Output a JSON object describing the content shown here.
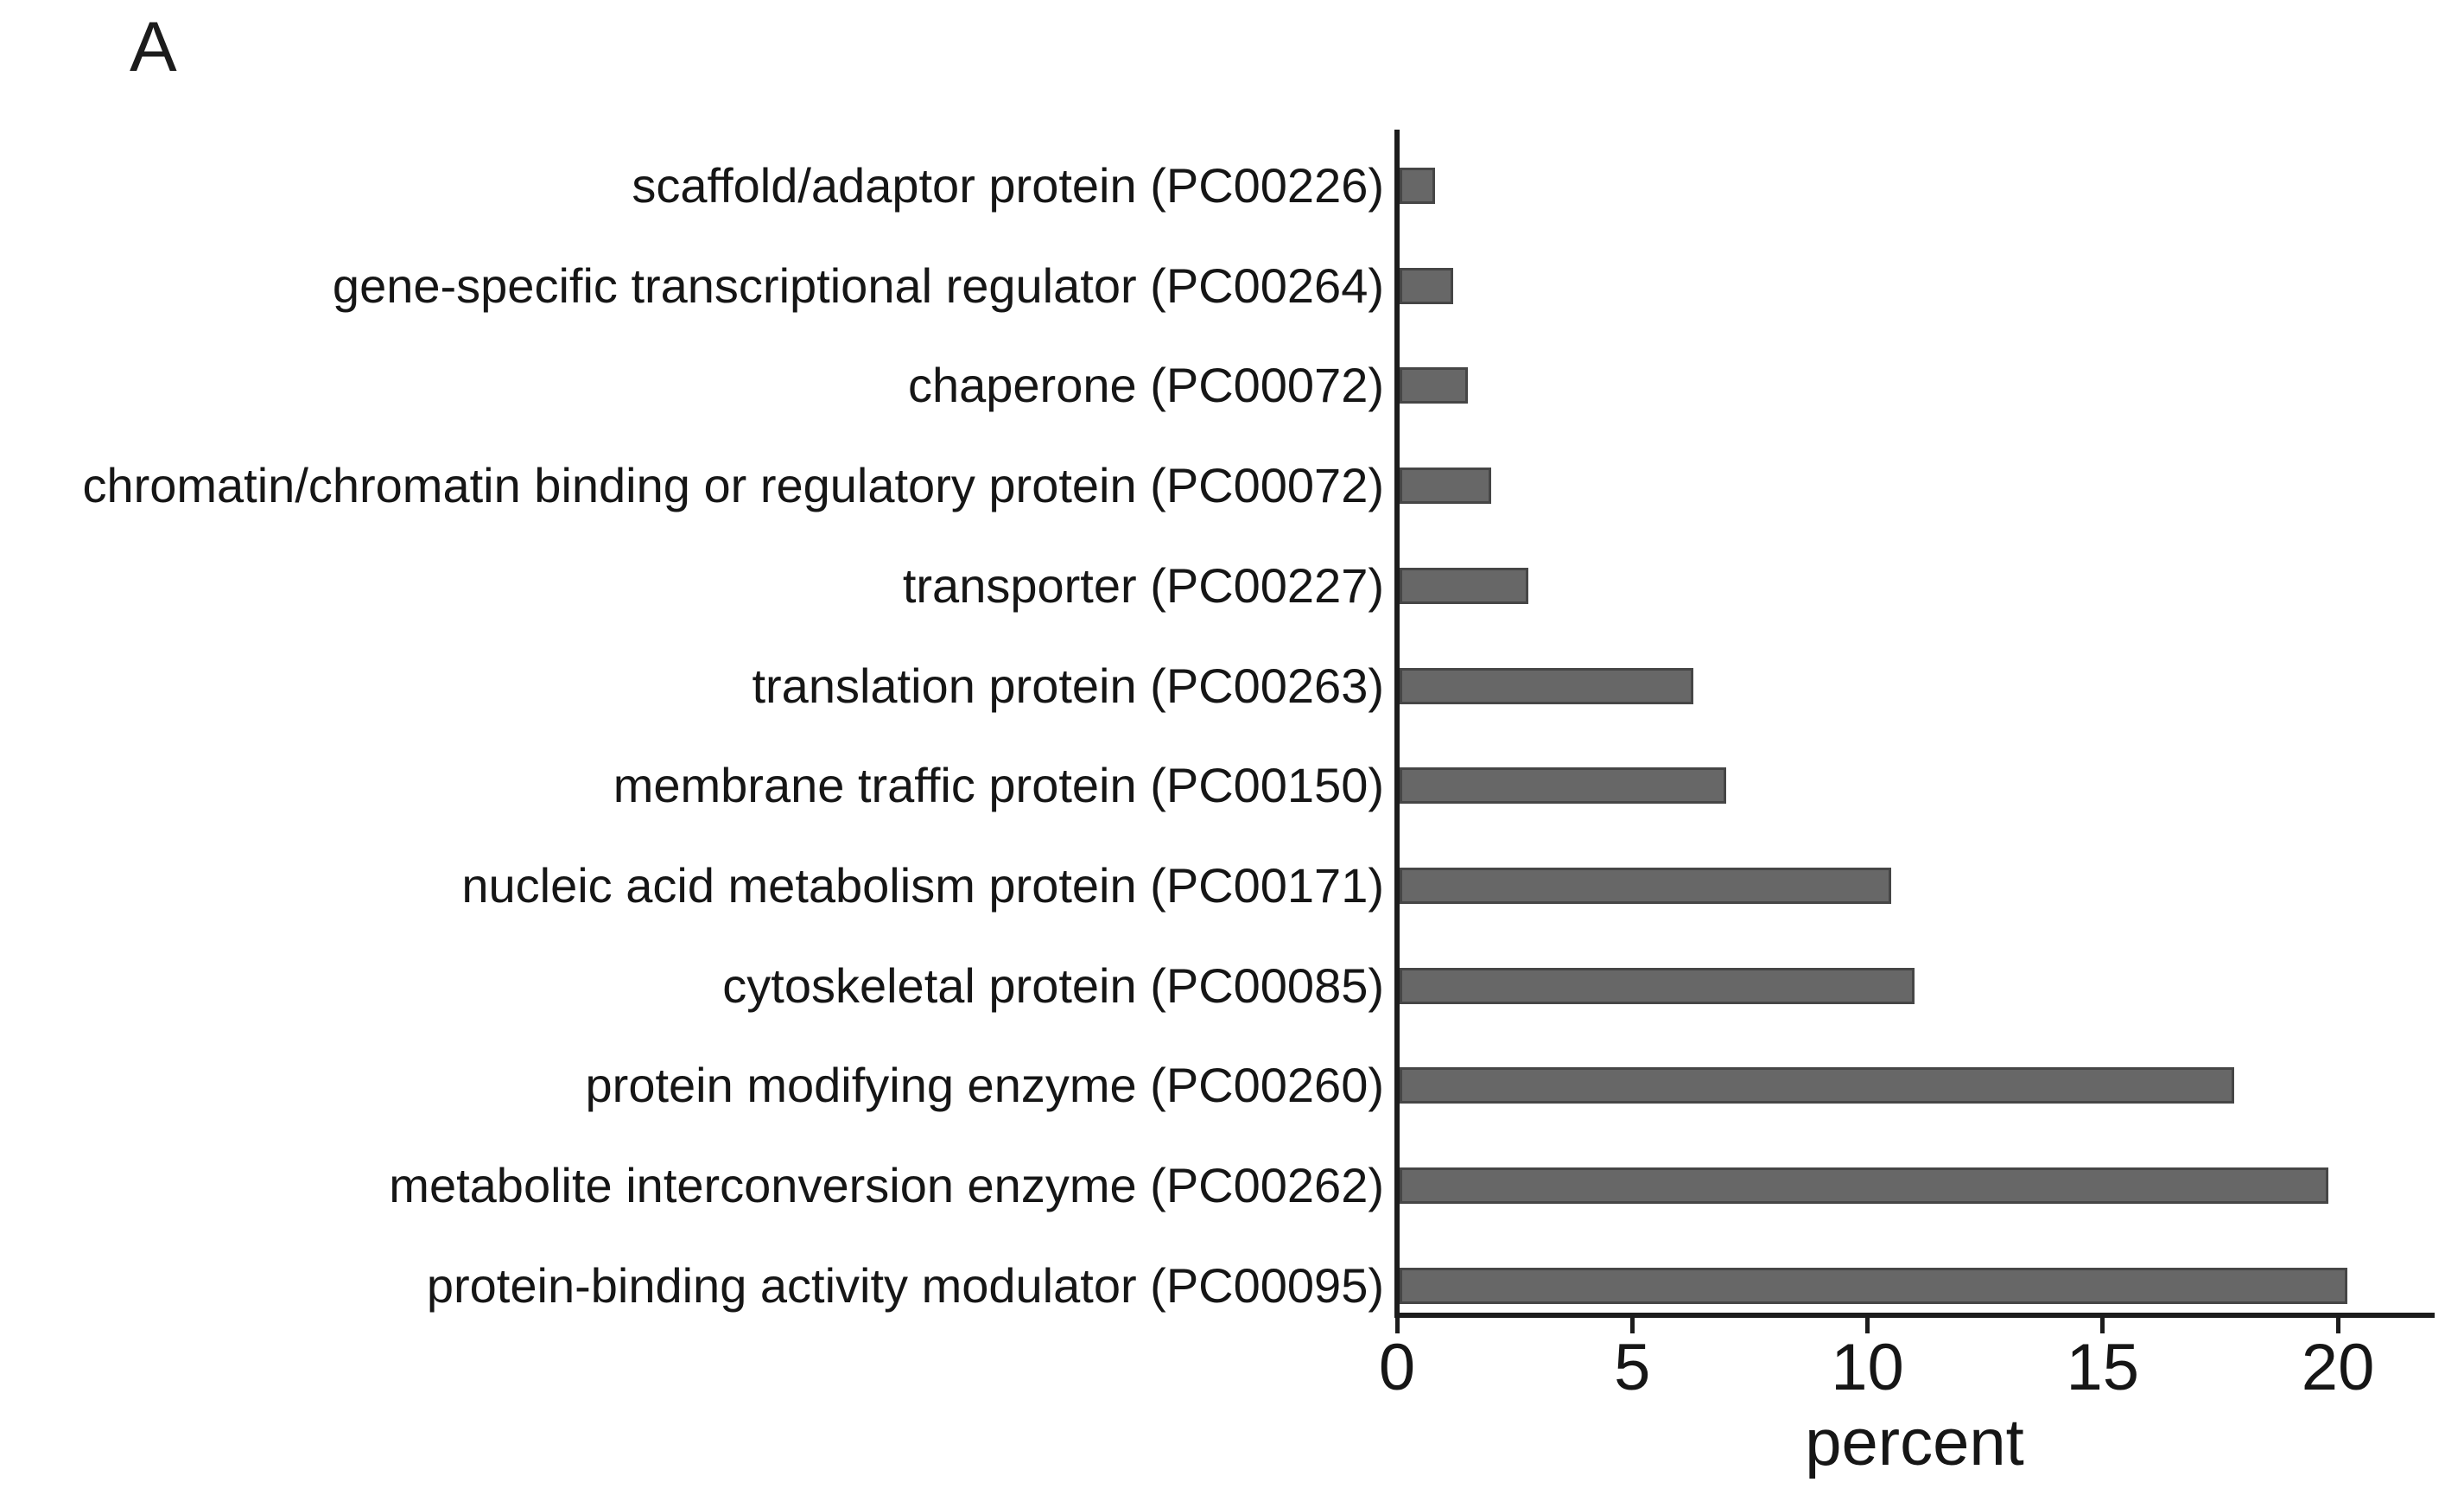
{
  "panel_label": "A",
  "chart_data": {
    "type": "bar",
    "orientation": "horizontal",
    "xlabel": "percent",
    "xlim": [
      0,
      22
    ],
    "xticks": [
      0,
      5,
      10,
      15,
      20
    ],
    "grid": false,
    "bar_color": "#676767",
    "bar_edge_color": "#464646",
    "axis_color": "#1c1c1c",
    "categories": [
      "scaffold/adaptor protein (PC00226)",
      "gene-specific transcriptional regulator (PC00264)",
      "chaperone (PC00072)",
      "chromatin/chromatin binding or regulatory protein (PC00072)",
      "transporter (PC00227)",
      "translation protein (PC00263)",
      "membrane traffic protein (PC00150)",
      "nucleic acid metabolism protein (PC00171)",
      "cytoskeletal protein (PC00085)",
      "protein modifying enzyme (PC00260)",
      "metabolite interconversion enzyme (PC00262)",
      "protein-binding activity modulator (PC00095)"
    ],
    "values": [
      0.8,
      1.2,
      1.5,
      2.0,
      2.8,
      6.3,
      7.0,
      10.5,
      11.0,
      17.8,
      19.8,
      20.2
    ]
  }
}
